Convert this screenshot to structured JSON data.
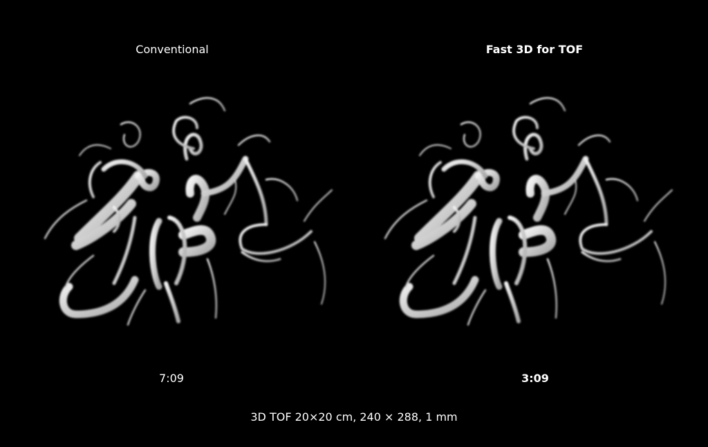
{
  "panels": [
    {
      "title": "Conventional",
      "time": "7:09"
    },
    {
      "title": "Fast 3D for TOF",
      "time": "3:09"
    }
  ],
  "caption": "3D TOF 20×20 cm, 240 × 288, 1 mm",
  "colors": {
    "background": "#000000",
    "text": "#ffffff",
    "vessel": "#e8e8e8"
  }
}
